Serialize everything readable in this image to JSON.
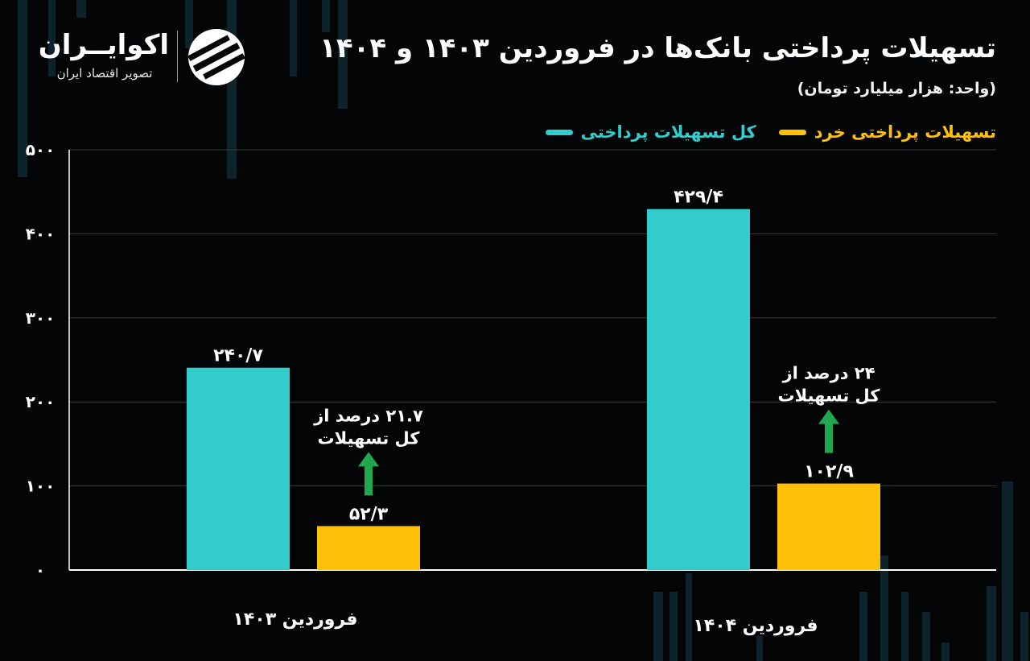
{
  "header": {
    "title": "تسهیلات پرداختی بانک‌ها در فروردین ۱۴۰۳ و ۱۴۰۴",
    "subtitle": "(واحد: هزار میلیارد تومان)"
  },
  "brand": {
    "name": "اکوایــران",
    "tagline": "تصویر اقتصاد ایران",
    "icon": "ekoiran-logo-icon"
  },
  "colors": {
    "background": "#040506",
    "total": "#33cccc",
    "retail": "#ffc107",
    "arrow": "#1fa84f",
    "axis": "#ffffff",
    "grid": "#3a3a3a"
  },
  "chart_data": {
    "type": "bar",
    "title": "تسهیلات پرداختی بانک‌ها در فروردین ۱۴۰۳ و ۱۴۰۴",
    "subtitle": "(واحد: هزار میلیارد تومان)",
    "categories": [
      "فروردین ۱۴۰۳",
      "فروردین ۱۴۰۴"
    ],
    "series": [
      {
        "name": "کل تسهیلات پرداختی",
        "color": "#33cccc",
        "values": [
          240.7,
          429.4
        ],
        "labels": [
          "۲۴۰/۷",
          "۴۲۹/۴"
        ]
      },
      {
        "name": "تسهیلات پرداختی خرد",
        "color": "#ffc107",
        "values": [
          52.3,
          102.9
        ],
        "labels": [
          "۵۲/۳",
          "۱۰۲/۹"
        ]
      }
    ],
    "annotations": [
      {
        "category": 0,
        "line1": "۲۱.۷ درصد از",
        "line2": "کل تسهیلات"
      },
      {
        "category": 1,
        "line1": "۲۴ درصد از",
        "line2": "کل تسهیلات"
      }
    ],
    "ylim": [
      0,
      500
    ],
    "yticks": [
      0,
      100,
      200,
      300,
      400,
      500
    ],
    "ytick_labels": [
      "۰",
      "۱۰۰",
      "۲۰۰",
      "۳۰۰",
      "۴۰۰",
      "۵۰۰"
    ],
    "grid": true,
    "legend_position": "top-right"
  }
}
